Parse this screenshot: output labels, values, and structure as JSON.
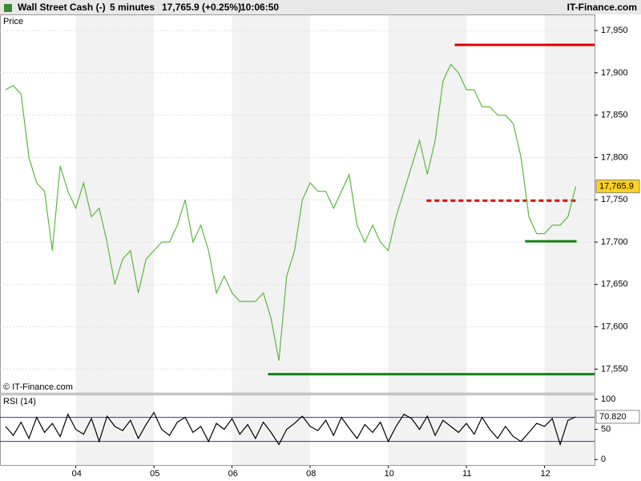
{
  "header": {
    "instrument": "Wall Street Cash (-)",
    "interval": "5 minutes",
    "price": "17,765.9 (+0.25%)",
    "time": "10:06:50",
    "brand": "IT-Finance.com"
  },
  "chart_data": [
    {
      "type": "line",
      "title": "Price",
      "credit": "© IT-Finance.com",
      "x": [
        0.1,
        0.2,
        0.3,
        0.4,
        0.5,
        0.6,
        0.7,
        0.8,
        0.9,
        1.0,
        1.1,
        1.2,
        1.3,
        1.4,
        1.5,
        1.6,
        1.7,
        1.8,
        1.9,
        2.0,
        2.1,
        2.2,
        2.3,
        2.4,
        2.5,
        2.6,
        2.7,
        2.8,
        2.9,
        3.0,
        3.1,
        3.2,
        3.3,
        3.4,
        3.5,
        3.6,
        3.7,
        3.8,
        3.9,
        4.0,
        4.1,
        4.2,
        4.3,
        4.4,
        4.5,
        4.6,
        4.7,
        4.8,
        4.9,
        5.0,
        5.1,
        5.2,
        5.3,
        5.4,
        5.5,
        5.6,
        5.7,
        5.8,
        5.9,
        6.0,
        6.1,
        6.2,
        6.3,
        6.4,
        6.5,
        6.6,
        6.7,
        6.8,
        6.9,
        7.0,
        7.1,
        7.2,
        7.3,
        7.4
      ],
      "series": [
        {
          "color": "#5cb840",
          "values": [
            17880,
            17885,
            17875,
            17800,
            17770,
            17760,
            17690,
            17790,
            17760,
            17740,
            17770,
            17730,
            17740,
            17700,
            17650,
            17680,
            17690,
            17640,
            17680,
            17690,
            17700,
            17700,
            17720,
            17750,
            17700,
            17720,
            17690,
            17640,
            17660,
            17640,
            17630,
            17630,
            17630,
            17640,
            17610,
            17560,
            17660,
            17690,
            17750,
            17770,
            17760,
            17760,
            17740,
            17760,
            17780,
            17720,
            17700,
            17720,
            17700,
            17690,
            17730,
            17760,
            17790,
            17820,
            17780,
            17820,
            17890,
            17910,
            17900,
            17880,
            17880,
            17860,
            17860,
            17850,
            17850,
            17840,
            17800,
            17730,
            17710,
            17710,
            17720,
            17720,
            17730,
            17765.9
          ]
        }
      ],
      "levels": [
        {
          "value": 17933,
          "x": [
            5.85,
            7.64
          ],
          "color": "#e00000",
          "dashed": false
        },
        {
          "value": 17749,
          "x": [
            5.49,
            7.41
          ],
          "color": "#e00000",
          "dashed": true
        },
        {
          "value": 17701,
          "x": [
            6.75,
            7.41
          ],
          "color": "#108010",
          "dashed": false
        },
        {
          "value": 17544,
          "x": [
            3.46,
            7.64
          ],
          "color": "#108010",
          "dashed": false
        }
      ],
      "last": {
        "value": 17765.9,
        "label": "17,765.9"
      },
      "xlim": [
        0.03,
        7.64
      ],
      "xticks": [
        {
          "value": 1,
          "label": "04"
        },
        {
          "value": 2,
          "label": "05"
        },
        {
          "value": 3,
          "label": "06"
        },
        {
          "value": 4,
          "label": "08"
        },
        {
          "value": 5,
          "label": "10"
        },
        {
          "value": 6,
          "label": "11"
        },
        {
          "value": 7,
          "label": "12"
        }
      ],
      "ylim": [
        17522,
        17969
      ],
      "yticks": [
        {
          "value": 17550,
          "label": "17,550"
        },
        {
          "value": 17600,
          "label": "17,600"
        },
        {
          "value": 17650,
          "label": "17,650"
        },
        {
          "value": 17700,
          "label": "17,700"
        },
        {
          "value": 17750,
          "label": "17,750"
        },
        {
          "value": 17800,
          "label": "17,800"
        },
        {
          "value": 17850,
          "label": "17,850"
        },
        {
          "value": 17900,
          "label": "17,900"
        },
        {
          "value": 17950,
          "label": "17,950"
        }
      ],
      "grid": true
    },
    {
      "type": "line",
      "title": "RSI (14)",
      "x": [
        0.1,
        0.2,
        0.3,
        0.4,
        0.5,
        0.6,
        0.7,
        0.8,
        0.9,
        1.0,
        1.1,
        1.2,
        1.3,
        1.4,
        1.5,
        1.6,
        1.7,
        1.8,
        1.9,
        2.0,
        2.1,
        2.2,
        2.3,
        2.4,
        2.5,
        2.6,
        2.7,
        2.8,
        2.9,
        3.0,
        3.1,
        3.2,
        3.3,
        3.4,
        3.5,
        3.6,
        3.7,
        3.8,
        3.9,
        4.0,
        4.1,
        4.2,
        4.3,
        4.4,
        4.5,
        4.6,
        4.7,
        4.8,
        4.9,
        5.0,
        5.1,
        5.2,
        5.3,
        5.4,
        5.5,
        5.6,
        5.7,
        5.8,
        5.9,
        6.0,
        6.1,
        6.2,
        6.3,
        6.4,
        6.5,
        6.6,
        6.7,
        6.8,
        6.9,
        7.0,
        7.1,
        7.2,
        7.3,
        7.4
      ],
      "series": [
        {
          "color": "#000000",
          "values": [
            55,
            40,
            62,
            35,
            70,
            45,
            60,
            38,
            75,
            50,
            42,
            68,
            30,
            72,
            55,
            48,
            65,
            35,
            58,
            78,
            50,
            40,
            62,
            70,
            45,
            55,
            30,
            60,
            50,
            68,
            42,
            58,
            35,
            62,
            45,
            25,
            50,
            60,
            72,
            55,
            48,
            65,
            40,
            70,
            52,
            35,
            58,
            45,
            62,
            30,
            55,
            75,
            68,
            50,
            72,
            40,
            65,
            55,
            45,
            60,
            42,
            70,
            50,
            35,
            55,
            38,
            30,
            45,
            60,
            55,
            68,
            25,
            65,
            70.82
          ]
        }
      ],
      "levels": [
        {
          "value": 70,
          "color": "#3030a0"
        },
        {
          "value": 30,
          "color": "#3030a0"
        }
      ],
      "last": {
        "value": 70.82,
        "label": "70.820"
      },
      "xlim": [
        0.03,
        7.64
      ],
      "ylim": [
        -9,
        108
      ],
      "yticks": [
        0,
        50,
        100
      ]
    }
  ]
}
